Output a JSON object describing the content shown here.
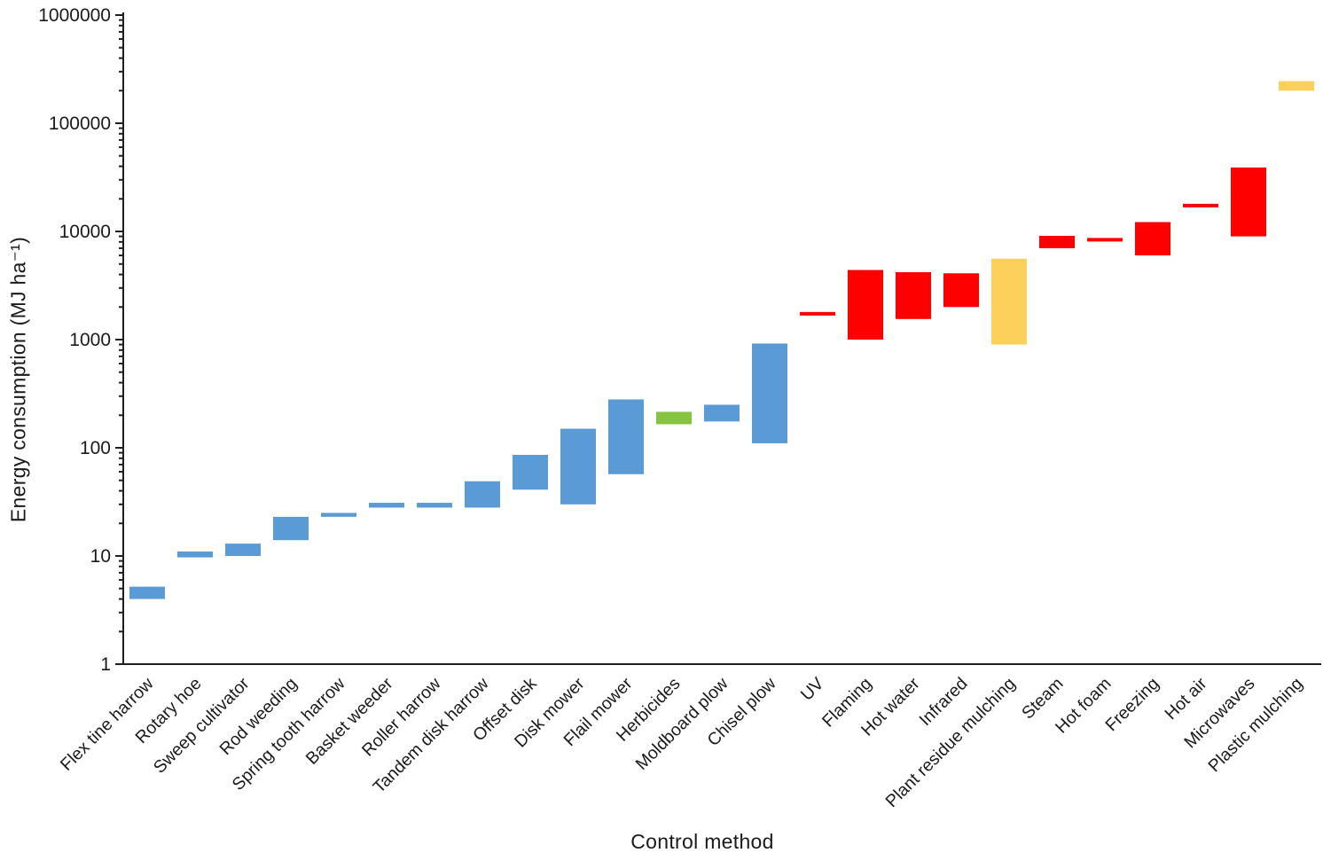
{
  "chart_data": {
    "type": "bar",
    "subtype": "floating-range-bars",
    "title": "",
    "xlabel": "Control method",
    "ylabel": "Energy consumption (MJ ha⁻¹)",
    "y_scale": "log10",
    "ylim": [
      1,
      1000000
    ],
    "y_tick_labels": [
      "1",
      "10",
      "100",
      "1000",
      "10000",
      "100000",
      "1000000"
    ],
    "grid": false,
    "legend": "none",
    "axis_color": "#1f1f1f",
    "text_color": "#1a1a1a",
    "colors": {
      "mechanical": "#5B9BD5",
      "chemical": "#85C441",
      "thermal": "#FF0000",
      "mulching": "#FBD15C"
    },
    "categories": [
      {
        "label": "Flex tine harrow",
        "group": "mechanical",
        "low": 4,
        "high": 5.2
      },
      {
        "label": "Rotary hoe",
        "group": "mechanical",
        "low": 9.7,
        "high": 11
      },
      {
        "label": "Sweep cultivator",
        "group": "mechanical",
        "low": 10,
        "high": 13
      },
      {
        "label": "Rod weeding",
        "group": "mechanical",
        "low": 14,
        "high": 23
      },
      {
        "label": "Spring tooth harrow",
        "group": "mechanical",
        "low": 23,
        "high": 25
      },
      {
        "label": "Basket weeder",
        "group": "mechanical",
        "low": 28,
        "high": 31
      },
      {
        "label": "Roller harrow",
        "group": "mechanical",
        "low": 28,
        "high": 31
      },
      {
        "label": "Tandem disk harrow",
        "group": "mechanical",
        "low": 28,
        "high": 49
      },
      {
        "label": "Offset disk",
        "group": "mechanical",
        "low": 41,
        "high": 86
      },
      {
        "label": "Disk mower",
        "group": "mechanical",
        "low": 30,
        "high": 150
      },
      {
        "label": "Flail mower",
        "group": "mechanical",
        "low": 57,
        "high": 280
      },
      {
        "label": "Herbicides",
        "group": "chemical",
        "low": 165,
        "high": 215
      },
      {
        "label": "Moldboard plow",
        "group": "mechanical",
        "low": 175,
        "high": 250
      },
      {
        "label": "Chisel plow",
        "group": "mechanical",
        "low": 110,
        "high": 920
      },
      {
        "label": "UV",
        "group": "thermal",
        "low": 1700,
        "high": 1800
      },
      {
        "label": "Flaming",
        "group": "thermal",
        "low": 1000,
        "high": 4400
      },
      {
        "label": "Hot water",
        "group": "thermal",
        "low": 1550,
        "high": 4200
      },
      {
        "label": "Infrared",
        "group": "thermal",
        "low": 2000,
        "high": 4100
      },
      {
        "label": "Plant residue mulching",
        "group": "mulching",
        "low": 900,
        "high": 5600
      },
      {
        "label": "Steam",
        "group": "thermal",
        "low": 7000,
        "high": 9100
      },
      {
        "label": "Hot foam",
        "group": "thermal",
        "low": 8300,
        "high": 8700
      },
      {
        "label": "Freezing",
        "group": "thermal",
        "low": 6000,
        "high": 12200
      },
      {
        "label": "Hot air",
        "group": "thermal",
        "low": 17000,
        "high": 18000
      },
      {
        "label": "Microwaves",
        "group": "thermal",
        "low": 9000,
        "high": 39000
      },
      {
        "label": "Plastic mulching",
        "group": "mulching",
        "low": 200000,
        "high": 245000
      }
    ]
  }
}
